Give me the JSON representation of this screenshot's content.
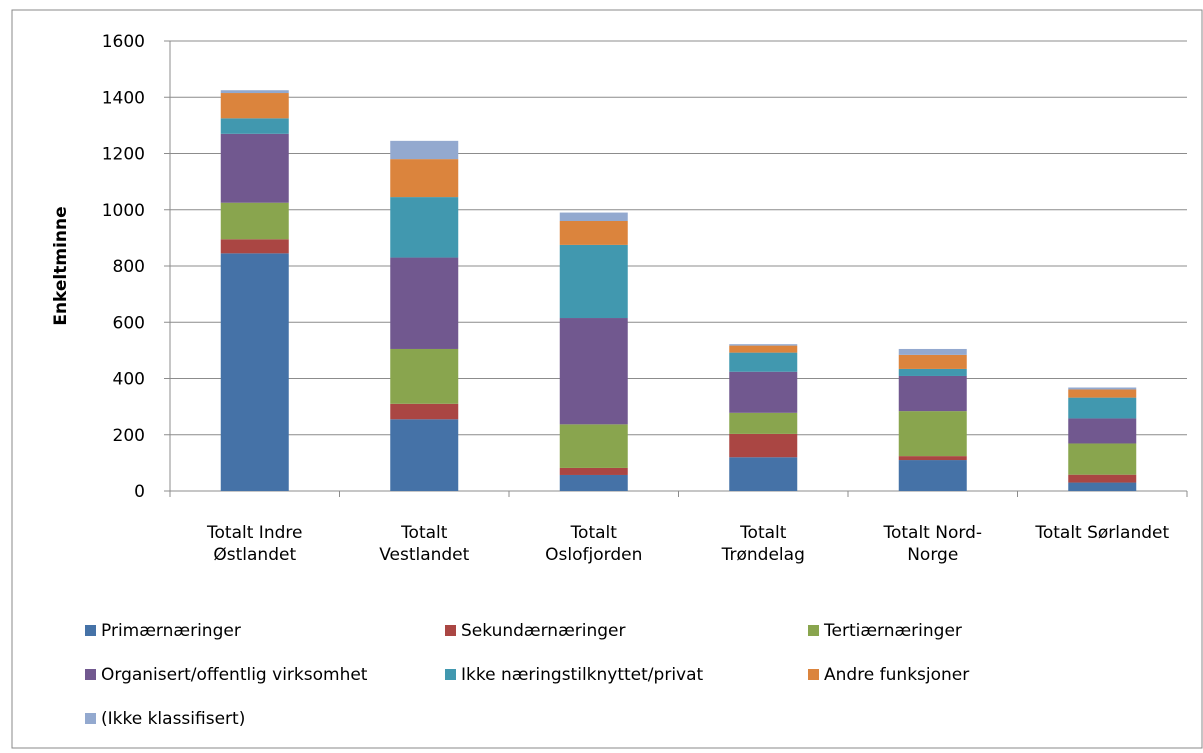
{
  "chart_data": {
    "type": "stacked_bar",
    "y_label": "Enkeltminne",
    "categories": [
      "Totalt Indre\nØstlandet",
      "Totalt\nVestlandet",
      "Totalt\nOslofjorden",
      "Totalt\nTrøndelag",
      "Totalt Nord-\nNorge",
      "Totalt Sørlandet"
    ],
    "series": [
      {
        "name": "Primærnæringer",
        "color": "#4572a7",
        "values": [
          845,
          255,
          57,
          120,
          110,
          30
        ]
      },
      {
        "name": "Sekundærnæringer",
        "color": "#aa4643",
        "values": [
          50,
          55,
          25,
          83,
          14,
          28
        ]
      },
      {
        "name": "Tertiærnæringer",
        "color": "#89a54e",
        "values": [
          130,
          195,
          155,
          75,
          160,
          111
        ]
      },
      {
        "name": "Organisert/offentlig virksomhet",
        "color": "#71588f",
        "values": [
          245,
          325,
          378,
          146,
          125,
          89
        ]
      },
      {
        "name": "Ikke næringstilknyttet/privat",
        "color": "#4198af",
        "values": [
          55,
          215,
          260,
          68,
          25,
          74
        ]
      },
      {
        "name": "Andre funksjoner",
        "color": "#db843d",
        "values": [
          90,
          135,
          85,
          25,
          50,
          29
        ]
      },
      {
        "name": "(Ikke klassifisert)",
        "color": "#93a9cf",
        "values": [
          10,
          65,
          30,
          5,
          21,
          7
        ]
      }
    ],
    "ylim": [
      0,
      1600
    ],
    "yticks": [
      0,
      200,
      400,
      600,
      800,
      1000,
      1200,
      1400,
      1600
    ],
    "grid": true
  }
}
